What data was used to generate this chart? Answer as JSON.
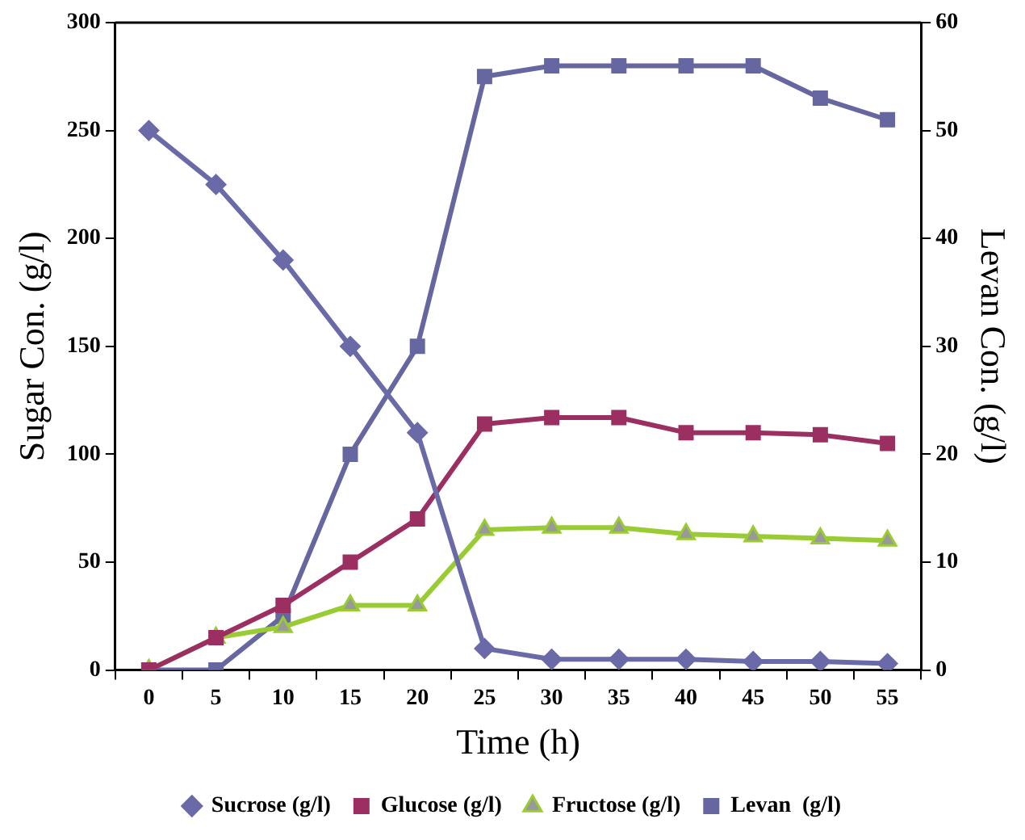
{
  "chart_data": {
    "type": "line",
    "xlabel": "Time (h)",
    "ylabel": "Sugar Con. (g/l)",
    "y2label": "Levan Con. (g/l)",
    "categories": [
      "0",
      "5",
      "10",
      "15",
      "20",
      "25",
      "30",
      "35",
      "40",
      "45",
      "50",
      "55"
    ],
    "ylim": [
      0,
      300
    ],
    "yticks": [
      0,
      50,
      100,
      150,
      200,
      250,
      300
    ],
    "y2lim": [
      0,
      60
    ],
    "y2ticks": [
      0,
      10,
      20,
      30,
      40,
      50,
      60
    ],
    "grid": false,
    "legend": "bottom",
    "line_style": "solid",
    "series": [
      {
        "name": "Sucrose (g/l)",
        "color": "#6a6aa8",
        "marker": "diamond",
        "values": [
          250,
          225,
          190,
          150,
          110,
          10,
          5,
          5,
          5,
          4,
          4,
          3
        ]
      },
      {
        "name": "Glucose (g/l)",
        "color": "#9c2f62",
        "marker": "square",
        "values": [
          0,
          15,
          30,
          50,
          70,
          114,
          117,
          117,
          110,
          110,
          109,
          105
        ]
      },
      {
        "name": "Fructose (g/l)",
        "color": "#99cc33",
        "marker": "triangle",
        "values": [
          0,
          15,
          20,
          30,
          30,
          65,
          66,
          66,
          63,
          62,
          61,
          60
        ]
      },
      {
        "name": "Levan  (g/l)",
        "color": "#6666a0",
        "marker": "square",
        "axis": "y2",
        "values": [
          0,
          0,
          5,
          20,
          30,
          55,
          56,
          56,
          56,
          56,
          53,
          51
        ]
      }
    ]
  }
}
